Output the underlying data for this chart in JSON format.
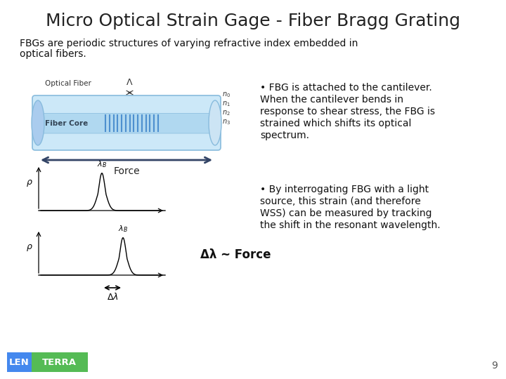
{
  "title": "Micro Optical Strain Gage - Fiber Bragg Grating",
  "subtitle_line1": "FBGs are periodic structures of varying refractive index embedded in",
  "subtitle_line2": "optical fibers.",
  "bullet1_lines": [
    "• FBG is attached to the cantilever.",
    "When the cantilever bends in",
    "response to shear stress, the FBG is",
    "strained which shifts its optical",
    "spectrum."
  ],
  "bullet2_lines": [
    "• By interrogating FBG with a light",
    "source, this strain (and therefore",
    "WSS) can be measured by tracking",
    "the shift in the resonant wavelength."
  ],
  "delta_lambda_force": "Δλ ~ Force",
  "force_label": "Force",
  "page_number": "9",
  "lenterra_blue": "#4488ee",
  "lenterra_green": "#55bb55",
  "lenterra_text": "#ffffff",
  "bg_color": "#ffffff",
  "title_color": "#222222",
  "body_color": "#111111",
  "fiber_outer_color": "#cce8f8",
  "fiber_inner_color": "#b0d8f0",
  "fiber_edge_color": "#88bbdd",
  "grating_color": "#6699cc",
  "arrow_color": "#334466"
}
